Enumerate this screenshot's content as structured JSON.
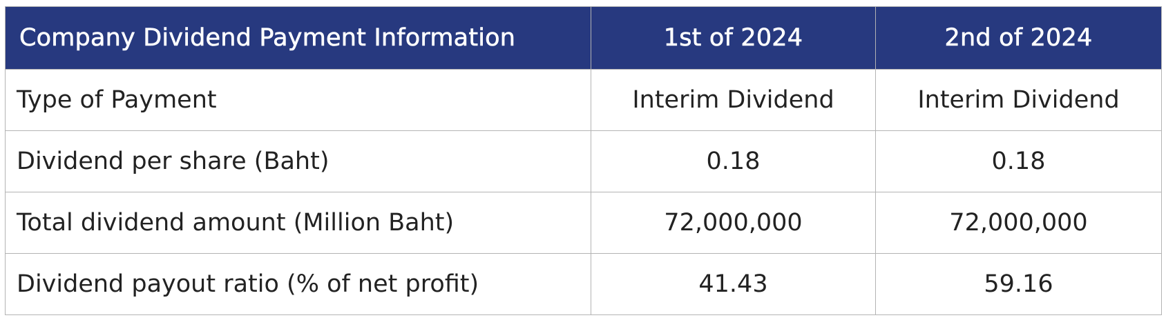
{
  "table": {
    "headers": [
      "Company Dividend Payment Information",
      "1st of 2024",
      "2nd of 2024"
    ],
    "rows": [
      {
        "label": "Type of Payment",
        "values": [
          "Interim Dividend",
          "Interim Dividend"
        ]
      },
      {
        "label": "Dividend per share (Baht)",
        "values": [
          "0.18",
          "0.18"
        ]
      },
      {
        "label": "Total dividend amount (Million Baht)",
        "values": [
          "72,000,000",
          "72,000,000"
        ]
      },
      {
        "label": "Dividend payout ratio (% of net profit)",
        "values": [
          "41.43",
          "59.16"
        ]
      }
    ]
  },
  "colors": {
    "header_background": "#27397f",
    "header_text": "#ffffff",
    "body_text": "#222222",
    "grid_line": "#b3b3b3"
  }
}
